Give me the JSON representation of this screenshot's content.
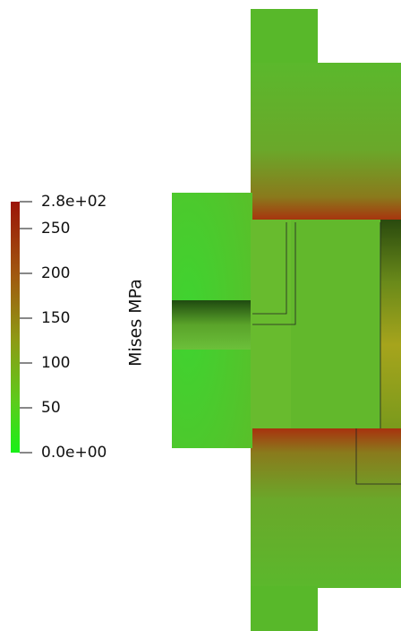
{
  "colorbar": {
    "title": "Mises MPa",
    "lim": [
      0,
      280
    ],
    "ticks": [
      {
        "value": 280,
        "label": "2.8e+02"
      },
      250,
      200,
      150,
      100,
      50,
      {
        "value": 0,
        "label": "0.0e+00"
      }
    ]
  }
}
